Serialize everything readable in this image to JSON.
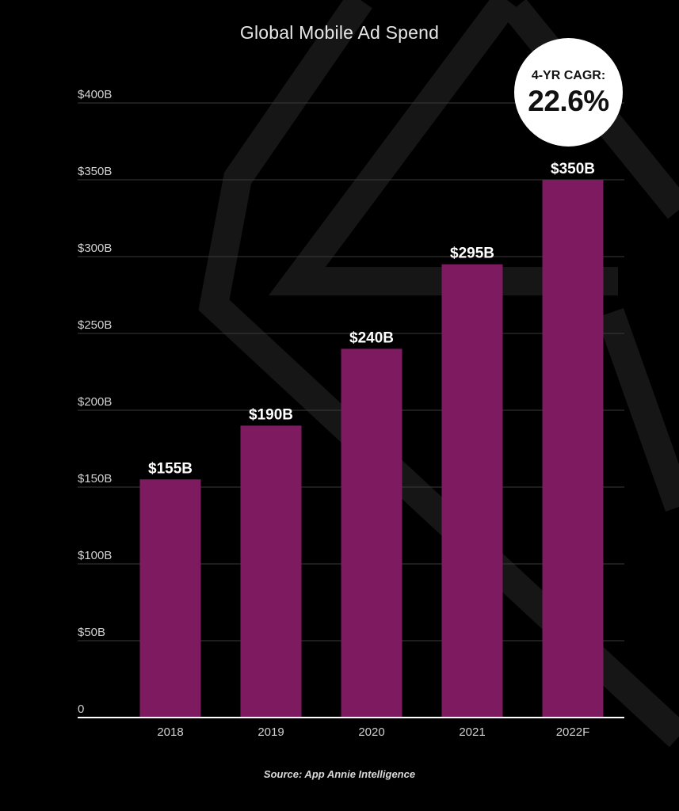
{
  "chart_data": {
    "type": "bar",
    "title": "Global Mobile Ad Spend",
    "categories": [
      "2018",
      "2019",
      "2020",
      "2021",
      "2022F"
    ],
    "values": [
      155,
      190,
      240,
      295,
      350
    ],
    "data_labels": [
      "$155B",
      "$190B",
      "$240B",
      "$295B",
      "$350B"
    ],
    "yticks": [
      0,
      50,
      100,
      150,
      200,
      250,
      300,
      350,
      400
    ],
    "ytick_labels": [
      "0",
      "$50B",
      "$100B",
      "$150B",
      "$200B",
      "$250B",
      "$300B",
      "$350B",
      "$400B"
    ],
    "ylim": [
      0,
      400
    ],
    "xlabel": "",
    "ylabel": "",
    "grid": true,
    "bar_color": "#7d1a60",
    "annotation": {
      "label": "4-YR CAGR:",
      "value": "22.6%"
    }
  },
  "source": "Source: App Annie Intelligence",
  "colors": {
    "background": "#000000",
    "grid": "#3a3a3a",
    "axis": "#ffffff",
    "text": "#e6e6e6"
  }
}
